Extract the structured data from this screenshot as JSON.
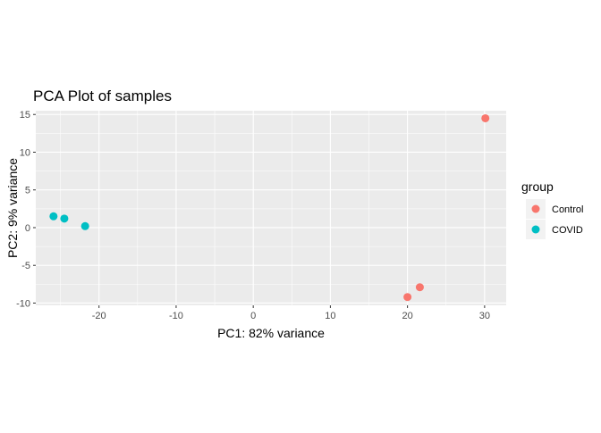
{
  "chart_data": {
    "type": "scatter",
    "title": "PCA Plot of samples",
    "xlabel": "PC1: 82% variance",
    "ylabel": "PC2: 9% variance",
    "xlim": [
      -28.2,
      32.8
    ],
    "ylim": [
      -10.3,
      15.5
    ],
    "x_ticks": [
      -20,
      -10,
      0,
      10,
      20,
      30
    ],
    "x_tick_labels": [
      "-20",
      "-10",
      "0",
      "10",
      "20",
      "30"
    ],
    "y_ticks": [
      -10,
      -5,
      0,
      5,
      10,
      15
    ],
    "y_tick_labels": [
      "-10",
      "-5",
      "0",
      "5",
      "10",
      "15"
    ],
    "grid": true,
    "legend": {
      "title": "group",
      "placement": "right"
    },
    "series": [
      {
        "name": "Control",
        "color": "#F8766D",
        "points": [
          {
            "x": 30.1,
            "y": 14.5
          },
          {
            "x": 21.6,
            "y": -7.9
          },
          {
            "x": 20.0,
            "y": -9.2
          }
        ]
      },
      {
        "name": "COVID",
        "color": "#00BFC4",
        "points": [
          {
            "x": -25.9,
            "y": 1.5
          },
          {
            "x": -24.5,
            "y": 1.2
          },
          {
            "x": -21.8,
            "y": 0.2
          }
        ]
      }
    ]
  }
}
